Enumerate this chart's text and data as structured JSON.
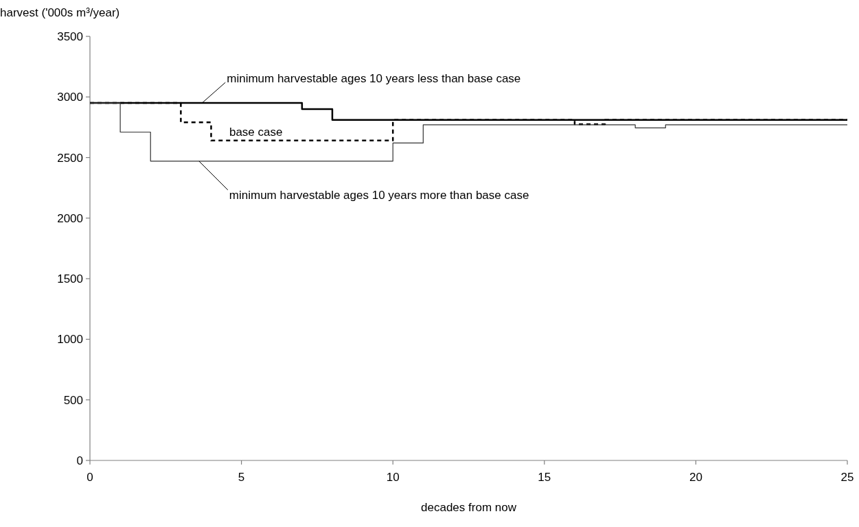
{
  "chart_data": {
    "type": "step",
    "ylabel": "harvest ('000s m³/year)",
    "xlabel": "decades from now",
    "xlim": [
      0,
      25
    ],
    "xticks": [
      0,
      5,
      10,
      15,
      20,
      25
    ],
    "ylim": [
      0,
      3500
    ],
    "yticks": [
      0,
      500,
      1000,
      1500,
      2000,
      2500,
      3000,
      3500
    ],
    "grid": false,
    "series": [
      {
        "color": "#000000",
        "line_style": "solid",
        "x": [
          0,
          7,
          8,
          25
        ],
        "values": [
          2950,
          2900,
          2810,
          2810
        ]
      },
      {
        "color": "#000000",
        "line_style": "dashed",
        "x": [
          0,
          3,
          4,
          10,
          16,
          17,
          25
        ],
        "values": [
          2950,
          2790,
          2640,
          2810,
          2775,
          2810,
          2810
        ]
      },
      {
        "color": "#333333",
        "line_style": "solid",
        "x": [
          0,
          1,
          2,
          10,
          11,
          18,
          19,
          25
        ],
        "values": [
          2950,
          2710,
          2470,
          2620,
          2770,
          2745,
          2770,
          2770
        ]
      }
    ],
    "annotations": [
      {
        "text": "minimum harvestable ages 10 years less than base case",
        "x": 3.7,
        "y": 2950
      },
      {
        "text": "base case",
        "x": 4.6,
        "y": 2640
      },
      {
        "text": "minimum harvestable ages 10 years more than base case",
        "x": 3.6,
        "y": 2470
      }
    ]
  }
}
